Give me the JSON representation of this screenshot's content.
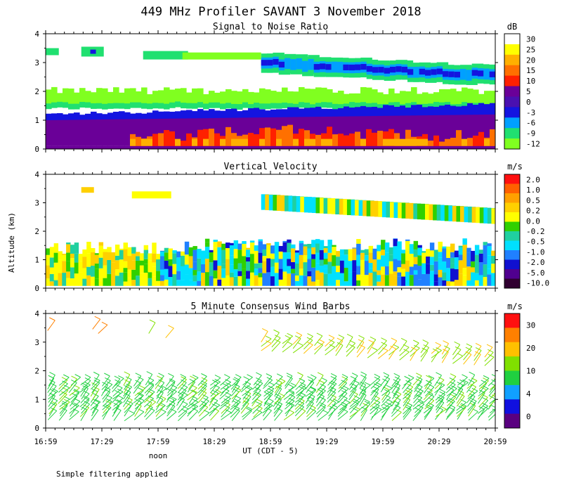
{
  "title": "449 MHz Profiler SAVANT  3 November 2018",
  "ylabel": "Altitude (km)",
  "xlabel": "UT  (CDT - 5)",
  "noon_label": "noon",
  "footnote": "Simple filtering applied",
  "x_ticks": [
    "16:59",
    "17:29",
    "17:59",
    "18:29",
    "18:59",
    "19:29",
    "19:59",
    "20:29",
    "20:59"
  ],
  "y_ticks": [
    "0",
    "1",
    "2",
    "3",
    "4"
  ],
  "colors": {
    "snr_scale": [
      "#ffffff",
      "#ffff00",
      "#ffb000",
      "#ff7000",
      "#ff2000",
      "#6a0098",
      "#4a10b0",
      "#1414e0",
      "#00a0ff",
      "#20e070",
      "#80ff20"
    ],
    "vel_scale": [
      "#ff1010",
      "#ff6000",
      "#ffa000",
      "#ffd000",
      "#ffff00",
      "#30d000",
      "#20d0a0",
      "#00e0ff",
      "#2080ff",
      "#1010d0",
      "#500090",
      "#300030"
    ],
    "wind_scale": [
      "#ff1010",
      "#ff8000",
      "#ffc000",
      "#80e000",
      "#20d040",
      "#10a0ff",
      "#1010e0",
      "#5a0080"
    ]
  },
  "chart_data": [
    {
      "type": "heatmap",
      "title": "Signal to Noise Ratio",
      "unit": "dB",
      "x_range_hours_ut": [
        16.983,
        20.983
      ],
      "ylim": [
        0,
        4
      ],
      "colorbar_ticks": [
        "30",
        "25",
        "20",
        "15",
        "10",
        "5",
        "0",
        "-3",
        "-6",
        "-9",
        "-12"
      ],
      "layers": [
        {
          "range_km": [
            0.1,
            0.6
          ],
          "snr_db": 10,
          "note": "strongest returns after 17:45"
        },
        {
          "range_km": [
            0.6,
            1.1
          ],
          "snr_db": 3
        },
        {
          "range_km": [
            1.1,
            1.5
          ],
          "snr_db": -4
        },
        {
          "range_km": [
            1.5,
            2.0
          ],
          "snr_db": -10
        },
        {
          "range_km": [
            2.5,
            3.2
          ],
          "snr_db": -4,
          "time_ut": [
            18.9,
            20.983
          ]
        },
        {
          "range_km": [
            3.2,
            3.5
          ],
          "snr_db": -9,
          "time_ut": [
            16.983,
            18.0
          ]
        }
      ]
    },
    {
      "type": "heatmap",
      "title": "Vertical Velocity",
      "unit": "m/s",
      "x_range_hours_ut": [
        16.983,
        20.983
      ],
      "ylim": [
        0,
        4
      ],
      "colorbar_ticks": [
        "2.0",
        "1.0",
        "0.5",
        "0.2",
        "0.0",
        "-0.2",
        "-0.5",
        "-1.0",
        "-2.0",
        "-5.0",
        "-10.0"
      ],
      "layers": [
        {
          "range_km": [
            0.1,
            1.6
          ],
          "w_ms": 0.0,
          "time_ut": [
            16.983,
            18.0
          ]
        },
        {
          "range_km": [
            0.1,
            1.7
          ],
          "w_ms": -0.5,
          "time_ut": [
            18.0,
            20.983
          ]
        },
        {
          "range_km": [
            2.4,
            3.2
          ],
          "w_ms": -0.2,
          "time_ut": [
            18.9,
            20.983
          ]
        }
      ]
    },
    {
      "type": "scatter",
      "title": "5 Minute Consensus Wind Barbs",
      "unit": "m/s",
      "x_range_hours_ut": [
        16.983,
        20.983
      ],
      "ylim": [
        0,
        4
      ],
      "colorbar_ticks": [
        "30",
        "20",
        "10",
        "4",
        "0"
      ],
      "samples": [
        {
          "range_km": [
            0.1,
            1.5
          ],
          "speed_ms": 9,
          "time_ut": [
            16.983,
            18.5
          ]
        },
        {
          "range_km": [
            0.1,
            1.6
          ],
          "speed_ms": 11,
          "time_ut": [
            18.5,
            20.983
          ]
        },
        {
          "range_km": [
            3.2,
            3.5
          ],
          "speed_ms": 18,
          "time_ut": [
            16.983,
            17.3
          ]
        },
        {
          "range_km": [
            3.1,
            3.4
          ],
          "speed_ms": 14,
          "time_ut": [
            17.5,
            18.0
          ]
        },
        {
          "range_km": [
            2.3,
            3.1
          ],
          "speed_ms": 14,
          "time_ut": [
            18.9,
            20.983
          ]
        }
      ]
    }
  ]
}
